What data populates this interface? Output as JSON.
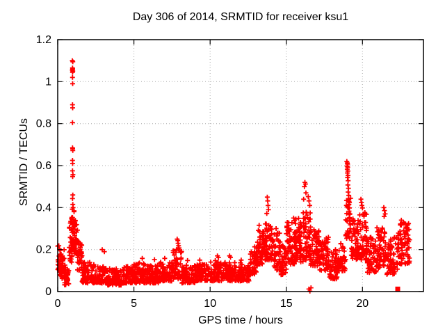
{
  "chart_data": {
    "type": "scatter",
    "title": "Day 306 of 2014, SRMTID for receiver ksu1",
    "xlabel": "GPS time / hours",
    "ylabel": "SRMTID / TECUs",
    "xlim": [
      0,
      24
    ],
    "ylim": [
      0,
      1.2
    ],
    "xticks": [
      0,
      5,
      10,
      15,
      20
    ],
    "xtick_labels": [
      "0",
      "5",
      "10",
      "15",
      "20"
    ],
    "yticks": [
      0,
      0.2,
      0.4,
      0.6,
      0.8,
      1,
      1.2
    ],
    "ytick_labels": [
      "0",
      "0.2",
      "0.4",
      "0.6",
      "0.8",
      "1",
      "1.2"
    ],
    "grid": true,
    "grid_color": "#a8a8a8",
    "legend": "none",
    "marker": "plus",
    "marker_color": "#ff0000",
    "series_name": "SRMTID",
    "seed": 20141106,
    "band_segments_format": [
      "x_start_hours",
      "x_end_hours",
      "num_points",
      "y_min_TECUs",
      "y_max_TECUs"
    ],
    "band_segments": [
      [
        0.0,
        0.15,
        16,
        0.1,
        0.22
      ],
      [
        0.1,
        0.45,
        40,
        0.06,
        0.2
      ],
      [
        0.45,
        0.75,
        26,
        0.03,
        0.14
      ],
      [
        0.75,
        0.95,
        30,
        0.14,
        0.37
      ],
      [
        0.95,
        1.1,
        26,
        0.2,
        0.4
      ],
      [
        1.05,
        1.3,
        36,
        0.18,
        0.34
      ],
      [
        1.3,
        1.6,
        36,
        0.1,
        0.24
      ],
      [
        1.6,
        2.1,
        50,
        0.04,
        0.14
      ],
      [
        2.1,
        2.6,
        48,
        0.04,
        0.13
      ],
      [
        2.6,
        3.2,
        55,
        0.04,
        0.12
      ],
      [
        3.2,
        4.2,
        90,
        0.03,
        0.11
      ],
      [
        4.2,
        5.0,
        70,
        0.04,
        0.12
      ],
      [
        5.0,
        5.8,
        70,
        0.04,
        0.14
      ],
      [
        5.8,
        6.6,
        70,
        0.04,
        0.13
      ],
      [
        6.6,
        7.5,
        80,
        0.05,
        0.14
      ],
      [
        7.5,
        8.15,
        55,
        0.06,
        0.21
      ],
      [
        8.15,
        9.0,
        70,
        0.04,
        0.13
      ],
      [
        9.0,
        10.0,
        85,
        0.05,
        0.13
      ],
      [
        10.0,
        11.0,
        85,
        0.05,
        0.15
      ],
      [
        11.0,
        12.0,
        85,
        0.05,
        0.14
      ],
      [
        12.0,
        12.6,
        50,
        0.05,
        0.13
      ],
      [
        12.6,
        13.1,
        55,
        0.08,
        0.22
      ],
      [
        13.1,
        13.6,
        55,
        0.13,
        0.32
      ],
      [
        13.6,
        14.1,
        55,
        0.15,
        0.35
      ],
      [
        14.1,
        14.6,
        50,
        0.1,
        0.28
      ],
      [
        14.6,
        15.0,
        40,
        0.08,
        0.22
      ],
      [
        15.0,
        15.6,
        65,
        0.13,
        0.33
      ],
      [
        15.6,
        16.1,
        60,
        0.14,
        0.35
      ],
      [
        16.1,
        16.6,
        60,
        0.15,
        0.38
      ],
      [
        16.6,
        17.2,
        65,
        0.12,
        0.3
      ],
      [
        17.2,
        17.8,
        60,
        0.1,
        0.26
      ],
      [
        17.8,
        18.4,
        55,
        0.06,
        0.2
      ],
      [
        18.4,
        18.9,
        40,
        0.09,
        0.24
      ],
      [
        18.9,
        19.25,
        30,
        0.25,
        0.45
      ],
      [
        19.25,
        19.8,
        55,
        0.15,
        0.35
      ],
      [
        19.8,
        20.3,
        55,
        0.15,
        0.38
      ],
      [
        20.3,
        20.9,
        55,
        0.09,
        0.26
      ],
      [
        20.9,
        21.6,
        65,
        0.11,
        0.32
      ],
      [
        21.6,
        22.3,
        60,
        0.08,
        0.26
      ],
      [
        22.3,
        23.1,
        80,
        0.13,
        0.33
      ]
    ],
    "outlier_points": [
      [
        0.96,
        1.1
      ],
      [
        0.99,
        1.095
      ],
      [
        0.97,
        1.065
      ],
      [
        0.98,
        1.06
      ],
      [
        0.96,
        1.055
      ],
      [
        0.99,
        1.05
      ],
      [
        0.97,
        1.045
      ],
      [
        0.97,
        1.02
      ],
      [
        0.98,
        0.99
      ],
      [
        0.97,
        0.89
      ],
      [
        0.98,
        0.875
      ],
      [
        0.97,
        0.805
      ],
      [
        0.97,
        0.685
      ],
      [
        0.98,
        0.68
      ],
      [
        0.99,
        0.672
      ],
      [
        0.97,
        0.625
      ],
      [
        0.98,
        0.61
      ],
      [
        0.97,
        0.575
      ],
      [
        1.0,
        0.557
      ],
      [
        0.98,
        0.548
      ],
      [
        0.99,
        0.46
      ],
      [
        0.97,
        0.443
      ],
      [
        0.99,
        0.415
      ],
      [
        1.01,
        0.4
      ],
      [
        0.96,
        0.392
      ],
      [
        2.92,
        0.2
      ],
      [
        3.06,
        0.19
      ],
      [
        5.55,
        0.158
      ],
      [
        6.35,
        0.152
      ],
      [
        7.02,
        0.158
      ],
      [
        7.84,
        0.25
      ],
      [
        7.88,
        0.243
      ],
      [
        7.9,
        0.23
      ],
      [
        7.93,
        0.218
      ],
      [
        7.96,
        0.208
      ],
      [
        8.52,
        0.148
      ],
      [
        9.32,
        0.15
      ],
      [
        10.48,
        0.17
      ],
      [
        10.55,
        0.162
      ],
      [
        11.28,
        0.17
      ],
      [
        11.34,
        0.163
      ],
      [
        12.04,
        0.15
      ],
      [
        13.72,
        0.372
      ],
      [
        13.75,
        0.45
      ],
      [
        13.78,
        0.432
      ],
      [
        13.8,
        0.41
      ],
      [
        13.83,
        0.39
      ],
      [
        14.33,
        0.3
      ],
      [
        15.48,
        0.35
      ],
      [
        15.53,
        0.338
      ],
      [
        16.14,
        0.44
      ],
      [
        16.19,
        0.5
      ],
      [
        16.22,
        0.52
      ],
      [
        16.26,
        0.512
      ],
      [
        16.29,
        0.47
      ],
      [
        16.44,
        0.452
      ],
      [
        16.49,
        0.432
      ],
      [
        16.54,
        0.41
      ],
      [
        16.48,
        0.012
      ],
      [
        16.55,
        0.002
      ],
      [
        16.62,
        0.018
      ],
      [
        18.97,
        0.62
      ],
      [
        19.0,
        0.613
      ],
      [
        19.02,
        0.607
      ],
      [
        18.99,
        0.598
      ],
      [
        19.03,
        0.592
      ],
      [
        19.0,
        0.583
      ],
      [
        19.04,
        0.574
      ],
      [
        19.01,
        0.565
      ],
      [
        19.05,
        0.553
      ],
      [
        19.02,
        0.543
      ],
      [
        19.06,
        0.528
      ],
      [
        19.04,
        0.508
      ],
      [
        19.08,
        0.492
      ],
      [
        19.06,
        0.474
      ],
      [
        19.1,
        0.458
      ],
      [
        19.08,
        0.443
      ],
      [
        19.12,
        0.428
      ],
      [
        19.1,
        0.413
      ],
      [
        19.14,
        0.398
      ],
      [
        19.12,
        0.383
      ],
      [
        19.16,
        0.368
      ],
      [
        19.15,
        0.352
      ],
      [
        19.18,
        0.335
      ],
      [
        19.2,
        0.318
      ],
      [
        19.19,
        0.3
      ],
      [
        19.22,
        0.288
      ],
      [
        19.9,
        0.44
      ],
      [
        19.93,
        0.424
      ],
      [
        19.96,
        0.41
      ],
      [
        20.0,
        0.398
      ],
      [
        21.4,
        0.4
      ],
      [
        21.44,
        0.386
      ],
      [
        21.49,
        0.37
      ],
      [
        21.42,
        0.358
      ],
      [
        22.55,
        0.34
      ],
      [
        22.68,
        0.33
      ]
    ],
    "special_points": [
      {
        "x": 22.31,
        "y": 0.012,
        "marker": "filled-square",
        "color": "#ff0000"
      }
    ]
  }
}
